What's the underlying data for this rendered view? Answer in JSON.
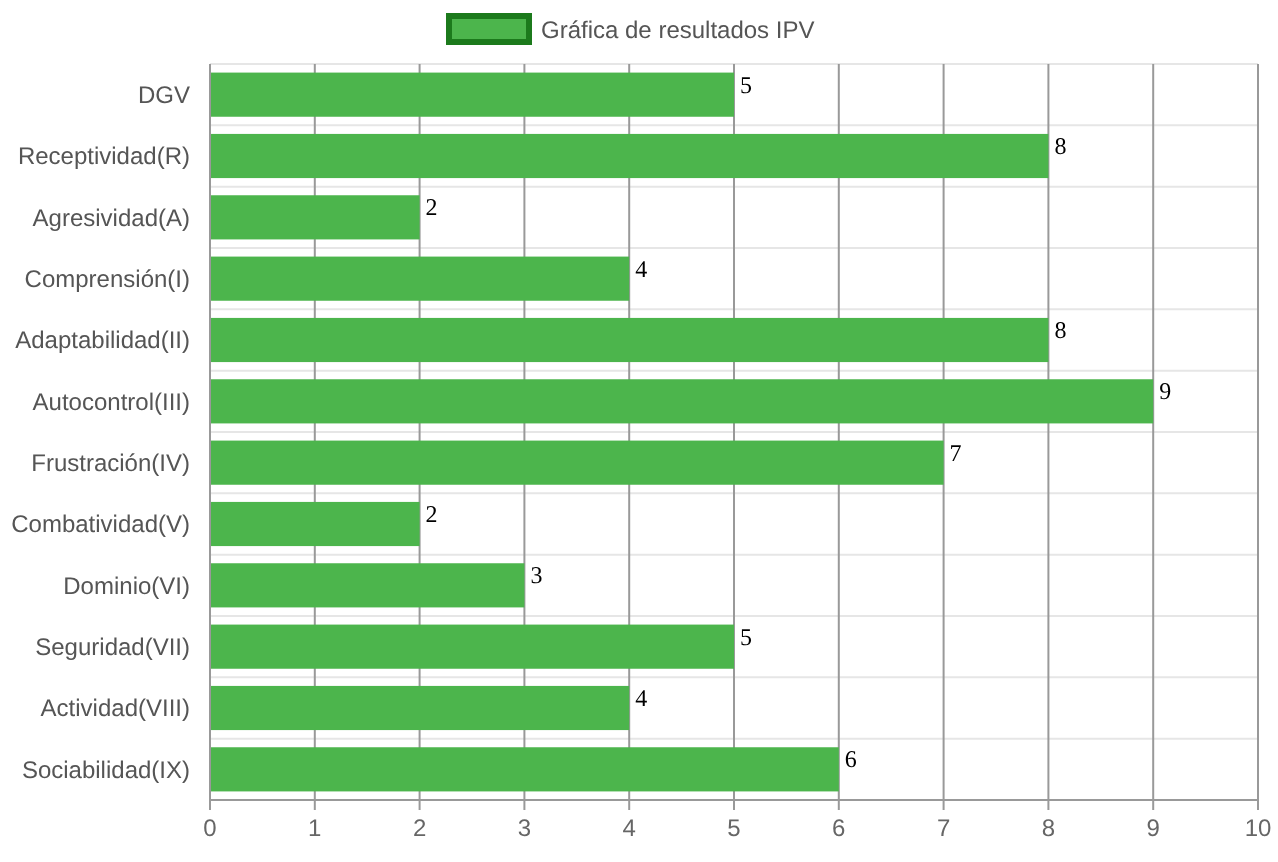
{
  "chart_data": {
    "type": "bar",
    "orientation": "horizontal",
    "categories": [
      "DGV",
      "Receptividad(R)",
      "Agresividad(A)",
      "Comprensión(I)",
      "Adaptabilidad(II)",
      "Autocontrol(III)",
      "Frustración(IV)",
      "Combatividad(V)",
      "Dominio(VI)",
      "Seguridad(VII)",
      "Actividad(VIII)",
      "Sociabilidad(IX)"
    ],
    "series": [
      {
        "name": "Gráfica de resultados IPV",
        "color": "#4cb54c",
        "values": [
          5,
          8,
          2,
          4,
          8,
          9,
          7,
          2,
          3,
          5,
          4,
          6
        ]
      }
    ],
    "xlim": [
      0,
      10
    ],
    "xticks": [
      0,
      1,
      2,
      3,
      4,
      5,
      6,
      7,
      8,
      9,
      10
    ],
    "grid": true,
    "legend": "top",
    "data_labels": true
  }
}
